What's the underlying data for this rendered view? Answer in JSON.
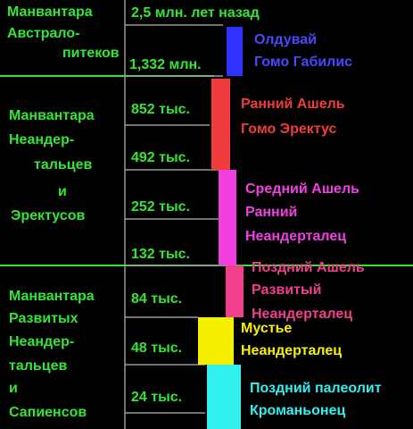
{
  "sections": [
    {
      "lines": [
        "Манвантара",
        "Австрало-",
        "питеков"
      ]
    },
    {
      "lines": [
        "Манвантара",
        "Неандер-",
        "тальцев",
        "и",
        "Эректусов"
      ]
    },
    {
      "lines": [
        "Манвантара",
        "Развитых",
        "Неандер-",
        "тальцев",
        "и",
        "Сапиенсов"
      ]
    }
  ],
  "time_labels": [
    "2,5 млн. лет назад",
    "1,332 млн.",
    "852 тыс.",
    "492 тыс.",
    "252 тыс.",
    "132 тыс.",
    "84 тыс.",
    "48 тыс.",
    "24 тыс."
  ],
  "periods": [
    {
      "lines": [
        "Олдувай",
        "Гомо Габилис"
      ]
    },
    {
      "lines": [
        "Ранний Ашель",
        "Гомо Эректус"
      ]
    },
    {
      "lines": [
        "Средний Ашель",
        "Ранний",
        "Неандерталец"
      ]
    },
    {
      "lines": [
        "Поздний Ашель",
        "Развитый",
        "Неандерталец"
      ]
    },
    {
      "lines": [
        "Мустье",
        "Неандерталец"
      ]
    },
    {
      "lines": [
        "Поздний палеолит",
        "Кроманьонец"
      ]
    }
  ]
}
